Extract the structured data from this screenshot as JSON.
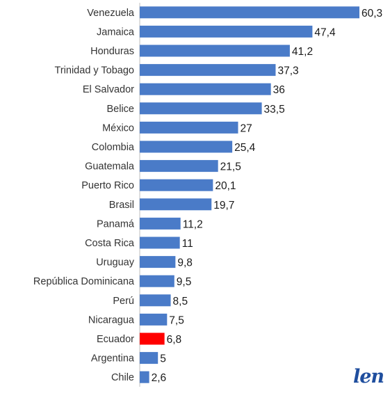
{
  "chart_data": {
    "type": "bar",
    "orientation": "horizontal",
    "categories": [
      "Venezuela",
      "Jamaica",
      "Honduras",
      "Trinidad y Tobago",
      "El Salvador",
      "Belice",
      "México",
      "Colombia",
      "Guatemala",
      "Puerto Rico",
      "Brasil",
      "Panamá",
      "Costa Rica",
      "Uruguay",
      "República Dominicana",
      "Perú",
      "Nicaragua",
      "Ecuador",
      "Argentina",
      "Chile"
    ],
    "values": [
      60.3,
      47.4,
      41.2,
      37.3,
      36,
      33.5,
      27,
      25.4,
      21.5,
      20.1,
      19.7,
      11.2,
      11,
      9.8,
      9.5,
      8.5,
      7.5,
      6.8,
      5,
      2.6
    ],
    "value_labels": [
      "60,3",
      "47,4",
      "41,2",
      "37,3",
      "36",
      "33,5",
      "27",
      "25,4",
      "21,5",
      "20,1",
      "19,7",
      "11,2",
      "11",
      "9,8",
      "9,5",
      "8,5",
      "7,5",
      "6,8",
      "5",
      "2,6"
    ],
    "bar_color": "#4a7bc8",
    "highlight_category": "Ecuador",
    "highlight_color": "#ff0000",
    "xlim": [
      0,
      60.3
    ],
    "grid": false,
    "axis_line_color": "#bfbfbf"
  },
  "watermark": {
    "text": "len"
  }
}
